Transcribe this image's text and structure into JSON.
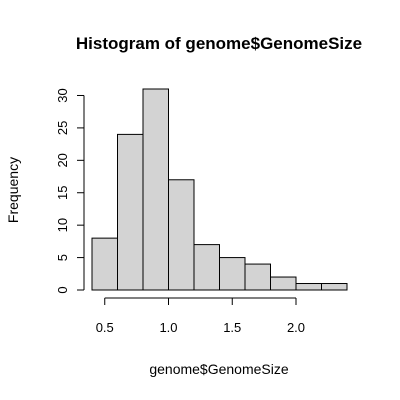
{
  "chart_data": {
    "type": "bar",
    "title": "Histogram of genome$GenomeSize",
    "xlabel": "genome$GenomeSize",
    "ylabel": "Frequency",
    "bins": [
      [
        0.4,
        0.6
      ],
      [
        0.6,
        0.8
      ],
      [
        0.8,
        1.0
      ],
      [
        1.0,
        1.2
      ],
      [
        1.2,
        1.4
      ],
      [
        1.4,
        1.6
      ],
      [
        1.6,
        1.8
      ],
      [
        1.8,
        2.0
      ],
      [
        2.0,
        2.2
      ],
      [
        2.2,
        2.4
      ]
    ],
    "values": [
      8,
      24,
      31,
      17,
      7,
      5,
      4,
      2,
      1,
      1
    ],
    "xlim": [
      0.4,
      2.4
    ],
    "ylim": [
      0,
      31
    ],
    "x_ticks": [
      0.5,
      1.0,
      1.5,
      2.0
    ],
    "x_tick_labels": [
      "0.5",
      "1.0",
      "1.5",
      "2.0"
    ],
    "y_ticks": [
      0,
      5,
      10,
      15,
      20,
      25,
      30
    ],
    "y_tick_labels": [
      "0",
      "5",
      "10",
      "15",
      "20",
      "25",
      "30"
    ],
    "bar_color": "#d3d3d3",
    "grid": false,
    "legend": "none"
  }
}
